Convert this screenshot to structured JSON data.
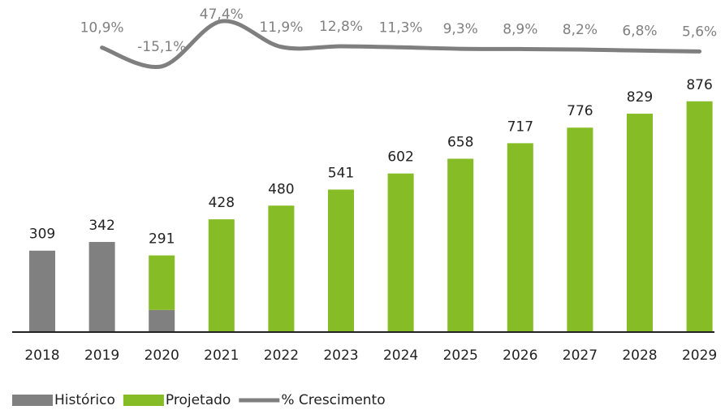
{
  "chart_data": {
    "type": "bar",
    "categories": [
      "2018",
      "2019",
      "2020",
      "2021",
      "2022",
      "2023",
      "2024",
      "2025",
      "2026",
      "2027",
      "2028",
      "2029"
    ],
    "totals": [
      309,
      342,
      291,
      428,
      480,
      541,
      602,
      658,
      717,
      776,
      829,
      876
    ],
    "series": [
      {
        "name": "Histórico",
        "color": "#808080",
        "values": [
          309,
          342,
          84,
          null,
          null,
          null,
          null,
          null,
          null,
          null,
          null,
          null
        ]
      },
      {
        "name": "Projetado",
        "color": "#86bc25",
        "values": [
          null,
          null,
          207,
          428,
          480,
          541,
          602,
          658,
          717,
          776,
          829,
          876
        ]
      },
      {
        "name": "% Crescimento",
        "color": "#7f7f7f",
        "type": "line",
        "axis": "y2",
        "values": [
          null,
          10.9,
          -15.1,
          47.4,
          11.9,
          12.8,
          11.3,
          9.3,
          8.9,
          8.2,
          6.8,
          5.6
        ],
        "value_labels": [
          null,
          "10,9%",
          "-15,1%",
          "47,4%",
          "11,9%",
          "12,8%",
          "11,3%",
          "9,3%",
          "8,9%",
          "8,2%",
          "6,8%",
          "5,6%"
        ]
      }
    ],
    "ylim": [
      0,
      900
    ],
    "y2lim": [
      -30,
      60
    ],
    "stacked": true,
    "legend": "bottom-left"
  }
}
